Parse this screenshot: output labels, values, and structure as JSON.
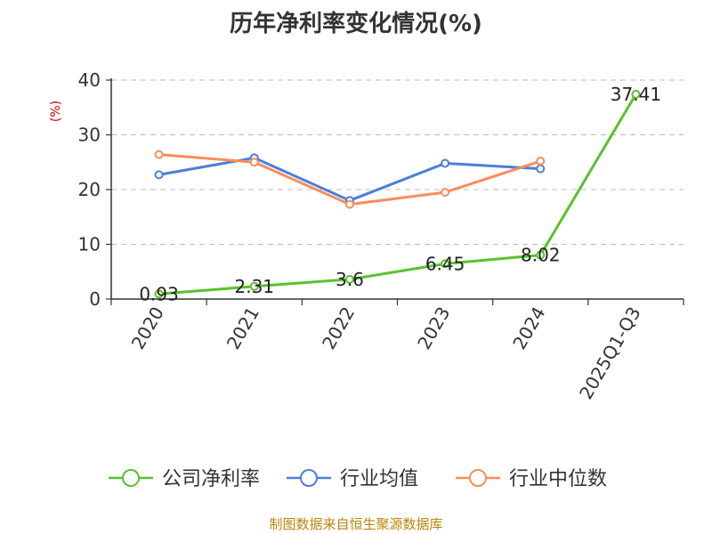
{
  "chart_data": {
    "type": "line",
    "title": "历年净利率变化情况(%)",
    "ylabel": "(%)",
    "xlabel": "",
    "categories": [
      "2020",
      "2021",
      "2022",
      "2023",
      "2024",
      "2025Q1-Q3"
    ],
    "ylim": [
      0,
      40
    ],
    "yticks": [
      0,
      10,
      20,
      30,
      40
    ],
    "grid": "horizontal-dashed",
    "legend_position": "bottom",
    "series": [
      {
        "name": "公司净利率",
        "color": "#5bc12e",
        "values": [
          0.93,
          2.31,
          3.6,
          6.45,
          8.02,
          37.41
        ],
        "labels": [
          "0.93",
          "2.31",
          "3.6",
          "6.45",
          "8.02",
          "37.41"
        ]
      },
      {
        "name": "行业均值",
        "color": "#4a7fd9",
        "values": [
          22.7,
          25.8,
          18.0,
          24.8,
          23.8,
          null
        ]
      },
      {
        "name": "行业中位数",
        "color": "#f98d5a",
        "values": [
          26.4,
          25.0,
          17.3,
          19.5,
          25.2,
          null
        ]
      }
    ]
  },
  "source": "制图数据来自恒生聚源数据库"
}
